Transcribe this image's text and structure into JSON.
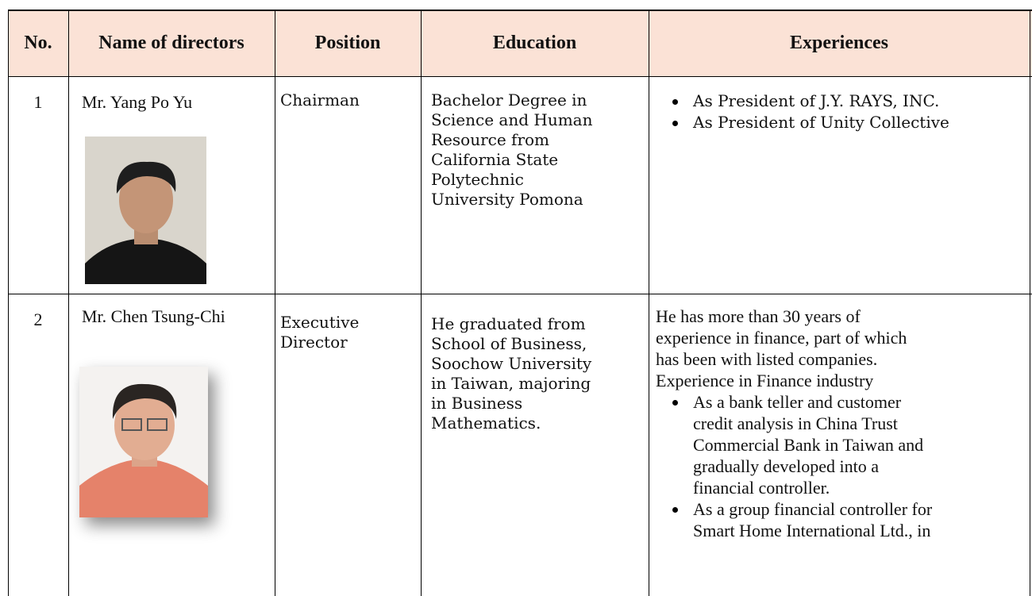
{
  "header": {
    "columns": [
      "No.",
      "Name of directors",
      "Position",
      "Education",
      "Experiences"
    ]
  },
  "rows": [
    {
      "no": "1",
      "name": "Mr. Yang Po Yu",
      "position": [
        "Chairman"
      ],
      "education": [
        "Bachelor Degree in",
        "Science and Human",
        "Resource from",
        "California State",
        "Polytechnic",
        "University Pomona"
      ],
      "experiences": {
        "intro": [],
        "bullets": [
          [
            "As President of J.Y. RAYS, INC."
          ],
          [
            "As President of Unity Collective"
          ]
        ]
      }
    },
    {
      "no": "2",
      "name": "Mr. Chen Tsung-Chi",
      "position": [
        "Executive",
        "Director"
      ],
      "education": [
        "He graduated from",
        "School of Business,",
        "Soochow University",
        "in Taiwan, majoring",
        "in Business",
        "Mathematics."
      ],
      "experiences": {
        "intro": [
          "He has more than 30 years of",
          "experience in finance, part of which",
          "has been with listed companies.",
          "Experience in Finance industry"
        ],
        "bullets": [
          [
            "As a bank teller and customer",
            "credit analysis in China Trust",
            "Commercial Bank in Taiwan and",
            "gradually developed into a",
            "financial controller."
          ],
          [
            "As a group financial controller for",
            "Smart Home International Ltd., in"
          ]
        ]
      }
    }
  ]
}
